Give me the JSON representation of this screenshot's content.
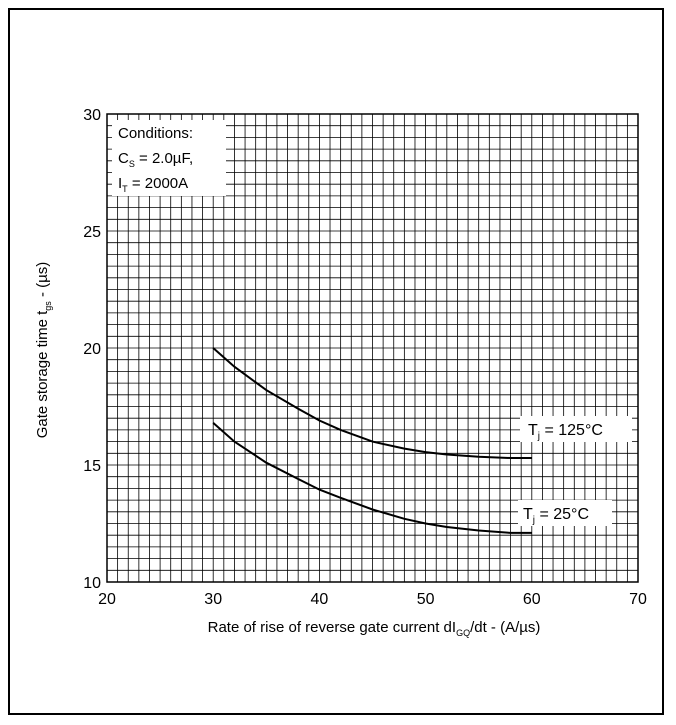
{
  "chart_data": {
    "type": "line",
    "title": "",
    "xlabel_parts": [
      "Rate of rise of reverse gate current dI",
      "GQ",
      "/dt - (A/µs)"
    ],
    "ylabel_parts": [
      "Gate storage time t",
      "gs",
      " - (µs)"
    ],
    "xlim": [
      20,
      70
    ],
    "ylim": [
      10,
      30
    ],
    "x_ticks": [
      20,
      30,
      40,
      50,
      60,
      70
    ],
    "y_ticks": [
      10,
      15,
      20,
      25,
      30
    ],
    "grid": true,
    "conditions": {
      "heading": "Conditions:",
      "cs_sym": "C",
      "cs_sub": "S",
      "cs_val": " = 2.0µF,",
      "it_sym": "I",
      "it_sub": "T",
      "it_val": " = 2000A"
    },
    "series": [
      {
        "name": "Tj = 125°C",
        "label_sym": "T",
        "label_sub": "j",
        "label_val": " = 125°C",
        "color": "#000000",
        "points": [
          [
            30,
            20.0
          ],
          [
            32,
            19.2
          ],
          [
            35,
            18.2
          ],
          [
            38,
            17.4
          ],
          [
            40,
            16.9
          ],
          [
            42,
            16.5
          ],
          [
            45,
            16.0
          ],
          [
            48,
            15.7
          ],
          [
            50,
            15.55
          ],
          [
            52,
            15.45
          ],
          [
            55,
            15.35
          ],
          [
            58,
            15.3
          ],
          [
            60,
            15.3
          ]
        ]
      },
      {
        "name": "Tj = 25°C",
        "label_sym": "T",
        "label_sub": "j",
        "label_val": " = 25°C",
        "color": "#000000",
        "points": [
          [
            30,
            16.8
          ],
          [
            32,
            16.0
          ],
          [
            35,
            15.1
          ],
          [
            38,
            14.4
          ],
          [
            40,
            13.95
          ],
          [
            42,
            13.6
          ],
          [
            45,
            13.1
          ],
          [
            48,
            12.7
          ],
          [
            50,
            12.5
          ],
          [
            52,
            12.35
          ],
          [
            55,
            12.2
          ],
          [
            58,
            12.1
          ],
          [
            60,
            12.1
          ]
        ]
      }
    ]
  }
}
